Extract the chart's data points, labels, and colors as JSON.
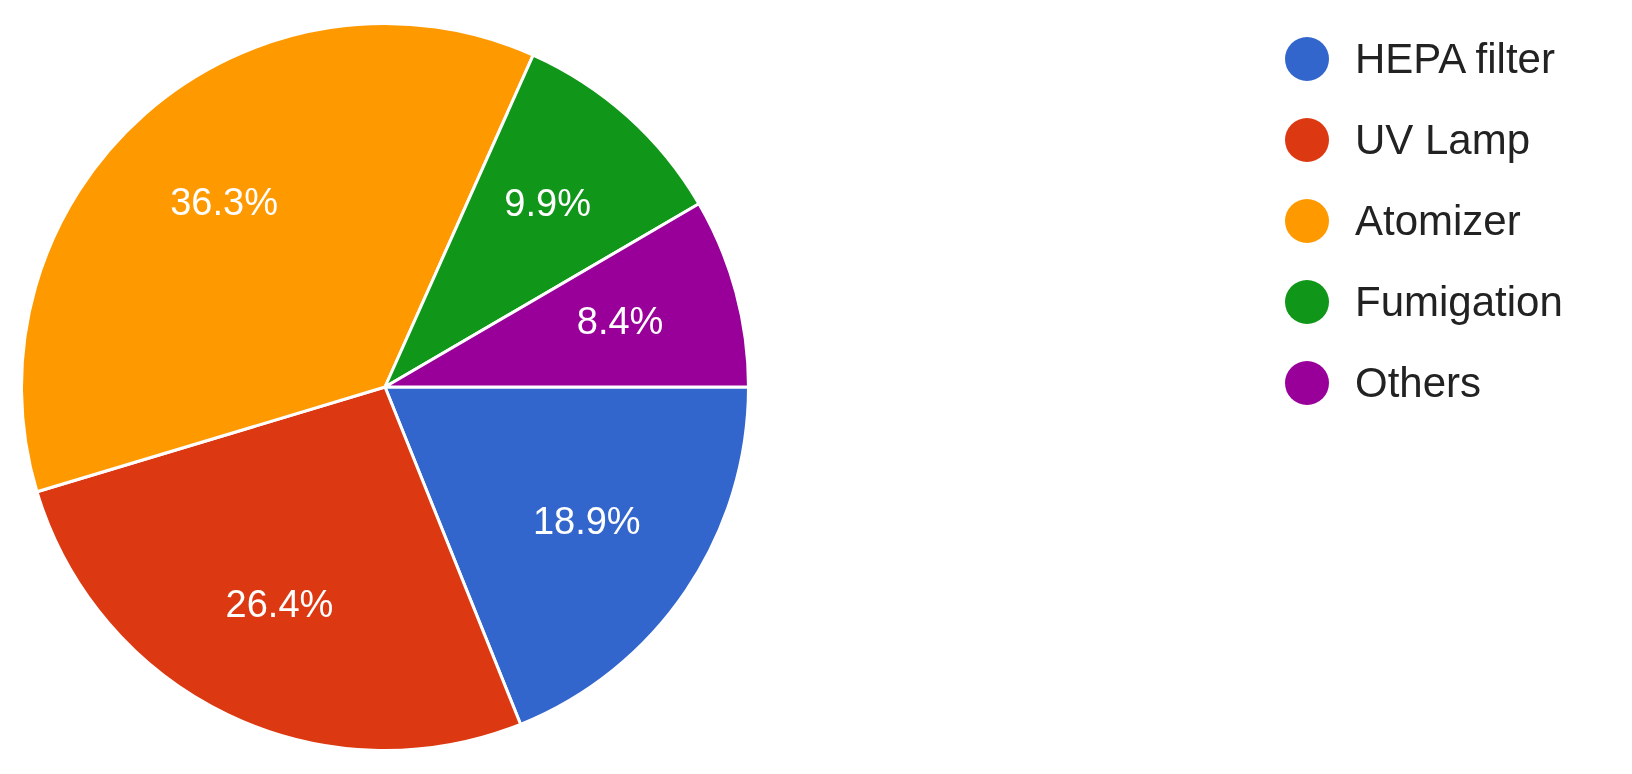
{
  "chart_data": {
    "type": "pie",
    "categories": [
      "HEPA filter",
      "UV Lamp",
      "Atomizer",
      "Fumigation",
      "Others"
    ],
    "values": [
      18.9,
      26.4,
      36.3,
      9.9,
      8.4
    ],
    "colors": [
      "#3366cc",
      "#dc3912",
      "#ff9900",
      "#109618",
      "#990099"
    ],
    "value_labels": [
      "18.9%",
      "26.4%",
      "36.3%",
      "9.9%",
      "8.4%"
    ],
    "legend": "top right"
  }
}
